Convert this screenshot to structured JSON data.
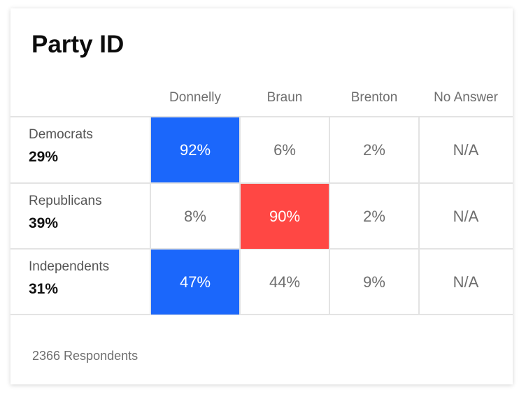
{
  "chart_data": {
    "type": "table",
    "title": "Party ID",
    "columns": [
      "Donnelly",
      "Braun",
      "Brenton",
      "No Answer"
    ],
    "rows": [
      {
        "group": "Democrats",
        "share": "29%",
        "values": [
          "92%",
          "6%",
          "2%",
          "N/A"
        ],
        "highlight": 0,
        "highlight_color": "#1b67fb"
      },
      {
        "group": "Republicans",
        "share": "39%",
        "values": [
          "8%",
          "90%",
          "2%",
          "N/A"
        ],
        "highlight": 1,
        "highlight_color": "#ff4744"
      },
      {
        "group": "Independents",
        "share": "31%",
        "values": [
          "47%",
          "44%",
          "9%",
          "N/A"
        ],
        "highlight": 0,
        "highlight_color": "#1b67fb"
      }
    ],
    "footer": "2366 Respondents"
  }
}
